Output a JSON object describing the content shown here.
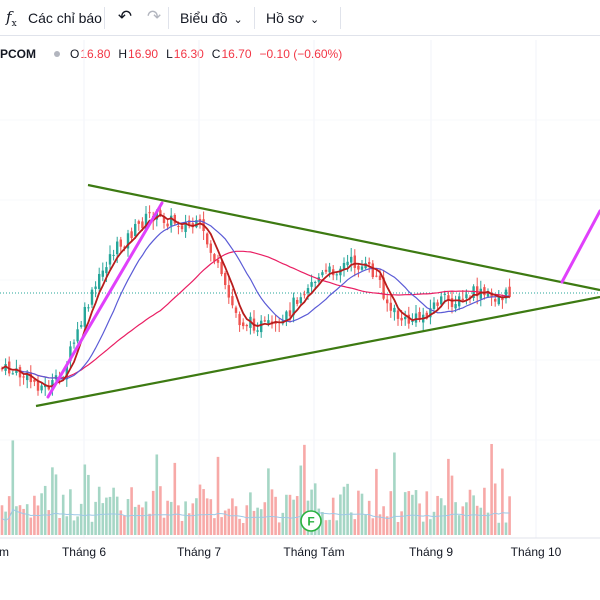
{
  "toolbar": {
    "indicators_icon": "fx-icon",
    "indicators_label": "Các chỉ báo",
    "undo_icon": "undo-arrow-icon",
    "redo_icon": "redo-arrow-icon",
    "chart_label": "Biểu đồ",
    "profile_label": "Hồ sơ"
  },
  "legend": {
    "symbol": "PCOM",
    "open_key": "O",
    "open": "16.80",
    "high_key": "H",
    "high": "16.90",
    "low_key": "L",
    "low": "16.30",
    "close_key": "C",
    "close": "16.70",
    "change": "−0.10 (−0.60%)"
  },
  "colors": {
    "up": "#26a69a",
    "down": "#ef5350",
    "volume_up": "#a5d6c5",
    "volume_down": "#f7a9a7",
    "ma_fast": "#b71c1c",
    "ma_mid": "#5b5bd6",
    "ma_slow": "#e91e63",
    "trendline": "#3d7a12",
    "projection": "#e040fb"
  },
  "chart_data": {
    "type": "candlestick",
    "x_ticks": [
      "m",
      "Tháng 6",
      "Tháng 7",
      "Tháng Tám",
      "Tháng 9",
      "Tháng 10"
    ],
    "event_marker": "F"
  }
}
